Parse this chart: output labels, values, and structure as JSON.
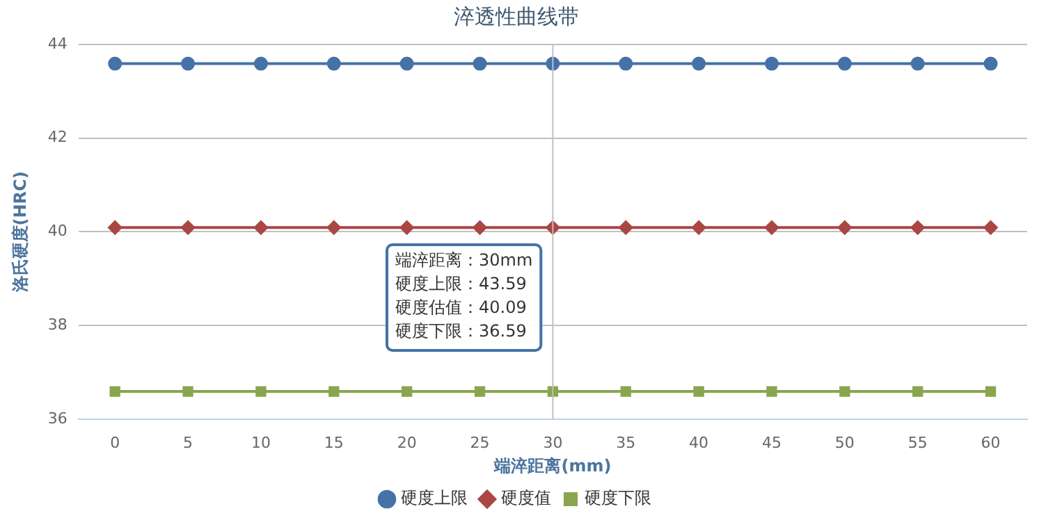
{
  "chart_data": {
    "type": "line",
    "title": "淬透性曲线带",
    "xlabel": "端淬距离(mm)",
    "ylabel": "洛氏硬度(HRC)",
    "categories": [
      "0",
      "5",
      "10",
      "15",
      "20",
      "25",
      "30",
      "35",
      "40",
      "45",
      "50",
      "55",
      "60"
    ],
    "series": [
      {
        "name": "硬度上限",
        "color": "#4572a7",
        "marker": "circle",
        "values": [
          43.59,
          43.59,
          43.59,
          43.59,
          43.59,
          43.59,
          43.59,
          43.59,
          43.59,
          43.59,
          43.59,
          43.59,
          43.59
        ]
      },
      {
        "name": "硬度值",
        "color": "#aa4643",
        "marker": "diamond",
        "values": [
          40.09,
          40.09,
          40.09,
          40.09,
          40.09,
          40.09,
          40.09,
          40.09,
          40.09,
          40.09,
          40.09,
          40.09,
          40.09
        ]
      },
      {
        "name": "硬度下限",
        "color": "#89a54e",
        "marker": "square",
        "values": [
          36.59,
          36.59,
          36.59,
          36.59,
          36.59,
          36.59,
          36.59,
          36.59,
          36.59,
          36.59,
          36.59,
          36.59,
          36.59
        ]
      }
    ],
    "ylim": [
      36,
      44
    ],
    "yticks": [
      36,
      38,
      40,
      42,
      44
    ],
    "grid": "y",
    "legend": "bottom",
    "ref_lines": [
      {
        "axis": "x",
        "value": "30",
        "color": "#c0c0c0"
      }
    ],
    "annotations": [
      "端淬距离：30mm",
      "硬度上限：43.59",
      "硬度估值：40.09",
      "硬度下限：36.59"
    ]
  }
}
